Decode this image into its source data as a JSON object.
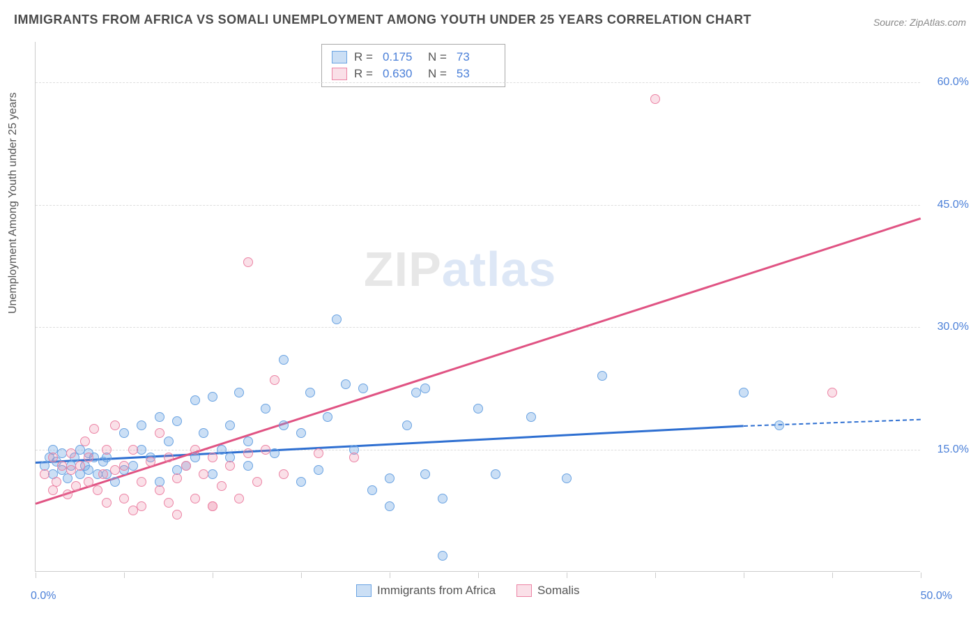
{
  "title": "IMMIGRANTS FROM AFRICA VS SOMALI UNEMPLOYMENT AMONG YOUTH UNDER 25 YEARS CORRELATION CHART",
  "source": "Source: ZipAtlas.com",
  "ylabel": "Unemployment Among Youth under 25 years",
  "watermark_a": "ZIP",
  "watermark_b": "atlas",
  "chart": {
    "type": "scatter",
    "xlim": [
      0,
      50
    ],
    "ylim": [
      0,
      65
    ],
    "yticks": [
      15,
      30,
      45,
      60
    ],
    "ytick_labels": [
      "15.0%",
      "30.0%",
      "45.0%",
      "60.0%"
    ],
    "xtick_labels": {
      "origin": "0.0%",
      "max": "50.0%"
    },
    "xtick_positions": [
      0,
      5,
      10,
      15,
      20,
      25,
      30,
      35,
      40,
      45,
      50
    ],
    "background_color": "#ffffff",
    "grid_color": "#dddddd",
    "axis_color": "#cccccc",
    "tick_label_color": "#4a7fd8",
    "series": [
      {
        "name": "Immigrants from Africa",
        "color_fill": "rgba(106,163,226,0.35)",
        "color_stroke": "#6aa3e2",
        "marker_size": 14,
        "R": "0.175",
        "N": "73",
        "trend": {
          "x1": 0,
          "y1": 13.5,
          "x2": 40,
          "y2": 18.0,
          "dash_x2": 50,
          "dash_y2": 18.8,
          "color": "#2e6fd1"
        },
        "points": [
          [
            0.5,
            13
          ],
          [
            0.8,
            14
          ],
          [
            1,
            12
          ],
          [
            1,
            15
          ],
          [
            1.2,
            13.5
          ],
          [
            1.5,
            14.5
          ],
          [
            1.5,
            12.5
          ],
          [
            1.8,
            11.5
          ],
          [
            2,
            13
          ],
          [
            2.2,
            14
          ],
          [
            2.5,
            12
          ],
          [
            2.5,
            15
          ],
          [
            2.8,
            13
          ],
          [
            3,
            12.5
          ],
          [
            3,
            14.5
          ],
          [
            3.3,
            14
          ],
          [
            3.5,
            12
          ],
          [
            3.8,
            13.5
          ],
          [
            4,
            14
          ],
          [
            4,
            12
          ],
          [
            4.5,
            11
          ],
          [
            5,
            12.5
          ],
          [
            5,
            17
          ],
          [
            5.5,
            13
          ],
          [
            6,
            15
          ],
          [
            6,
            18
          ],
          [
            6.5,
            14
          ],
          [
            7,
            11
          ],
          [
            7,
            19
          ],
          [
            7.5,
            16
          ],
          [
            8,
            12.5
          ],
          [
            8,
            18.5
          ],
          [
            8.5,
            13
          ],
          [
            9,
            14
          ],
          [
            9,
            21
          ],
          [
            9.5,
            17
          ],
          [
            10,
            12
          ],
          [
            10,
            21.5
          ],
          [
            10.5,
            15
          ],
          [
            11,
            14
          ],
          [
            11,
            18
          ],
          [
            11.5,
            22
          ],
          [
            12,
            16
          ],
          [
            12,
            13
          ],
          [
            13,
            20
          ],
          [
            13.5,
            14.5
          ],
          [
            14,
            18
          ],
          [
            14,
            26
          ],
          [
            15,
            11
          ],
          [
            15,
            17
          ],
          [
            15.5,
            22
          ],
          [
            16,
            12.5
          ],
          [
            16.5,
            19
          ],
          [
            17,
            31
          ],
          [
            17.5,
            23
          ],
          [
            18,
            15
          ],
          [
            18.5,
            22.5
          ],
          [
            19,
            10
          ],
          [
            20,
            8
          ],
          [
            20,
            11.5
          ],
          [
            21,
            18
          ],
          [
            21.5,
            22
          ],
          [
            22,
            12
          ],
          [
            22,
            22.5
          ],
          [
            23,
            9
          ],
          [
            23,
            2
          ],
          [
            25,
            20
          ],
          [
            26,
            12
          ],
          [
            28,
            19
          ],
          [
            30,
            11.5
          ],
          [
            32,
            24
          ],
          [
            40,
            22
          ],
          [
            42,
            18
          ]
        ]
      },
      {
        "name": "Somalis",
        "color_fill": "rgba(236,131,164,0.25)",
        "color_stroke": "#ec83a4",
        "marker_size": 14,
        "R": "0.630",
        "N": "53",
        "trend": {
          "x1": 0,
          "y1": 8.5,
          "x2": 50,
          "y2": 43.5,
          "color": "#e05383"
        },
        "points": [
          [
            0.5,
            12
          ],
          [
            1,
            10
          ],
          [
            1,
            14
          ],
          [
            1.2,
            11
          ],
          [
            1.5,
            13
          ],
          [
            1.8,
            9.5
          ],
          [
            2,
            12.5
          ],
          [
            2,
            14.5
          ],
          [
            2.3,
            10.5
          ],
          [
            2.5,
            13
          ],
          [
            2.8,
            16
          ],
          [
            3,
            11
          ],
          [
            3,
            14
          ],
          [
            3.3,
            17.5
          ],
          [
            3.5,
            10
          ],
          [
            3.8,
            12
          ],
          [
            4,
            15
          ],
          [
            4,
            8.5
          ],
          [
            4.5,
            12.5
          ],
          [
            4.5,
            18
          ],
          [
            5,
            9
          ],
          [
            5,
            13
          ],
          [
            5.5,
            7.5
          ],
          [
            5.5,
            15
          ],
          [
            6,
            11
          ],
          [
            6,
            8
          ],
          [
            6.5,
            13.5
          ],
          [
            7,
            10
          ],
          [
            7,
            17
          ],
          [
            7.5,
            8.5
          ],
          [
            7.5,
            14
          ],
          [
            8,
            11.5
          ],
          [
            8,
            7
          ],
          [
            8.5,
            13
          ],
          [
            9,
            9
          ],
          [
            9,
            15
          ],
          [
            9.5,
            12
          ],
          [
            10,
            8
          ],
          [
            10,
            14
          ],
          [
            10.5,
            10.5
          ],
          [
            11,
            13
          ],
          [
            11.5,
            9
          ],
          [
            12,
            14.5
          ],
          [
            12,
            38
          ],
          [
            12.5,
            11
          ],
          [
            13,
            15
          ],
          [
            13.5,
            23.5
          ],
          [
            14,
            12
          ],
          [
            16,
            14.5
          ],
          [
            18,
            14
          ],
          [
            35,
            58
          ],
          [
            45,
            22
          ],
          [
            10,
            8
          ]
        ]
      }
    ]
  },
  "legend_bottom": {
    "items": [
      "Immigrants from Africa",
      "Somalis"
    ]
  },
  "legend_top": {
    "r_label": "R =",
    "n_label": "N ="
  }
}
